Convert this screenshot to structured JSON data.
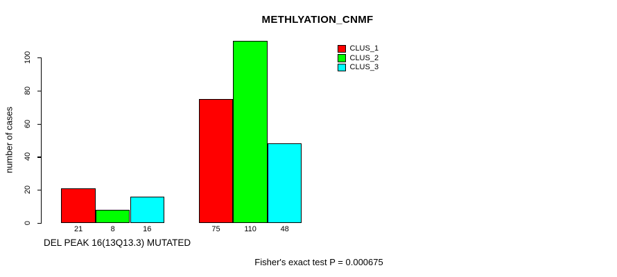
{
  "chart_data": {
    "type": "bar",
    "title": "METHLYATION_CNMF",
    "ylabel": "number of cases",
    "xlabel": "DEL PEAK 16(13Q13.3) MUTATED",
    "annotation": "Fisher's exact test P = 0.000675",
    "ylim": [
      0,
      110
    ],
    "yticks": [
      0,
      20,
      40,
      60,
      80,
      100
    ],
    "grid": false,
    "legend_position": "top-right",
    "series": [
      {
        "name": "CLUS_1",
        "color": "#ff0000",
        "values": [
          21,
          75
        ]
      },
      {
        "name": "CLUS_2",
        "color": "#00ff00",
        "values": [
          8,
          110
        ]
      },
      {
        "name": "CLUS_3",
        "color": "#00ffff",
        "values": [
          16,
          48
        ]
      }
    ],
    "bar_value_labels": [
      [
        "21",
        "8",
        "16"
      ],
      [
        "75",
        "110",
        "48"
      ]
    ]
  },
  "colors": {
    "background": "#ffffff",
    "axis": "#000000",
    "text": "#000000"
  }
}
